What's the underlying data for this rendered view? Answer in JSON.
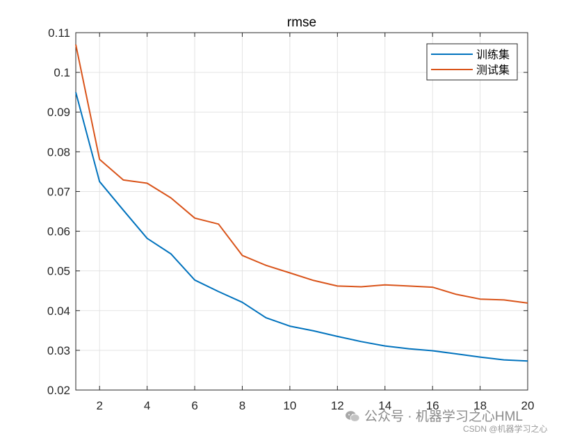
{
  "chart_data": {
    "type": "line",
    "title": "rmse",
    "xlabel": "",
    "ylabel": "",
    "xlim": [
      1,
      20
    ],
    "ylim": [
      0.02,
      0.11
    ],
    "xticks": [
      "2",
      "4",
      "6",
      "8",
      "10",
      "12",
      "14",
      "16",
      "18",
      "20"
    ],
    "yticks": [
      "0.02",
      "0.03",
      "0.04",
      "0.05",
      "0.06",
      "0.07",
      "0.08",
      "0.09",
      "0.1",
      "0.11"
    ],
    "grid": true,
    "legend_position": "top-right",
    "x": [
      1,
      2,
      3,
      4,
      5,
      6,
      7,
      8,
      9,
      10,
      11,
      12,
      13,
      14,
      15,
      16,
      17,
      18,
      19,
      20
    ],
    "series": [
      {
        "name": "训练集",
        "color": "#0072BD",
        "values": [
          0.095,
          0.0725,
          0.0653,
          0.0582,
          0.0543,
          0.0477,
          0.0448,
          0.0421,
          0.0382,
          0.0361,
          0.0349,
          0.0335,
          0.0322,
          0.0311,
          0.0304,
          0.0299,
          0.0291,
          0.0283,
          0.0276,
          0.0273
        ]
      },
      {
        "name": "测试集",
        "color": "#D95319",
        "values": [
          0.107,
          0.0781,
          0.0729,
          0.0721,
          0.0684,
          0.0633,
          0.0618,
          0.0539,
          0.0514,
          0.0495,
          0.0476,
          0.0462,
          0.046,
          0.0465,
          0.0462,
          0.0459,
          0.0441,
          0.0429,
          0.0427,
          0.0419
        ]
      }
    ]
  },
  "watermark": {
    "main": "公众号 · 机器学习之心HML",
    "sub": "CSDN @机器学习之心",
    "icon": "wechat-icon"
  }
}
